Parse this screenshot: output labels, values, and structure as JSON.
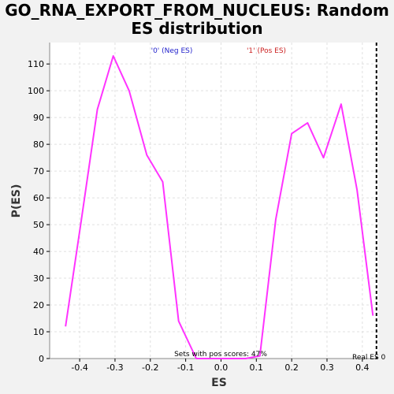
{
  "chart_data": {
    "type": "line",
    "title_line1": "GO_RNA_EXPORT_FROM_NUCLEUS: Random",
    "title_line2": "ES distribution",
    "xlabel": "ES",
    "ylabel": "P(ES)",
    "xlim": [
      -0.485,
      0.445
    ],
    "ylim": [
      0,
      118
    ],
    "xticks": [
      -0.4,
      -0.3,
      -0.2,
      -0.1,
      0.0,
      0.1,
      0.2,
      0.3,
      0.4
    ],
    "xtick_labels": [
      "-0.4",
      "-0.3",
      "-0.2",
      "-0.1",
      "0.0",
      "0.1",
      "0.2",
      "0.3",
      "0.4"
    ],
    "yticks": [
      0,
      10,
      20,
      30,
      40,
      50,
      60,
      70,
      80,
      90,
      100,
      110
    ],
    "ytick_labels": [
      "0",
      "10",
      "20",
      "30",
      "40",
      "50",
      "60",
      "70",
      "80",
      "90",
      "100",
      "110"
    ],
    "grid": true,
    "legend": [
      {
        "label": "'0' (Neg ES)",
        "color": "#2222cc"
      },
      {
        "label": "'1' (Pos ES)",
        "color": "#cc2222"
      }
    ],
    "series": [
      {
        "color": "#ff33ff",
        "x": [
          -0.44,
          -0.395,
          -0.35,
          -0.305,
          -0.26,
          -0.21,
          -0.165,
          -0.12,
          -0.07,
          0.0,
          0.07,
          0.11,
          0.155,
          0.2,
          0.245,
          0.29,
          0.34,
          0.385,
          0.43
        ],
        "y": [
          12,
          52,
          93,
          113,
          100,
          76,
          66,
          14,
          0,
          0,
          0,
          1,
          52,
          84,
          88,
          75,
          95,
          63,
          16
        ]
      }
    ],
    "real_es": {
      "x": 0.44,
      "label": "Real ES 0",
      "color": "#000000"
    },
    "annotation": "Sets with pos scores: 47%"
  }
}
